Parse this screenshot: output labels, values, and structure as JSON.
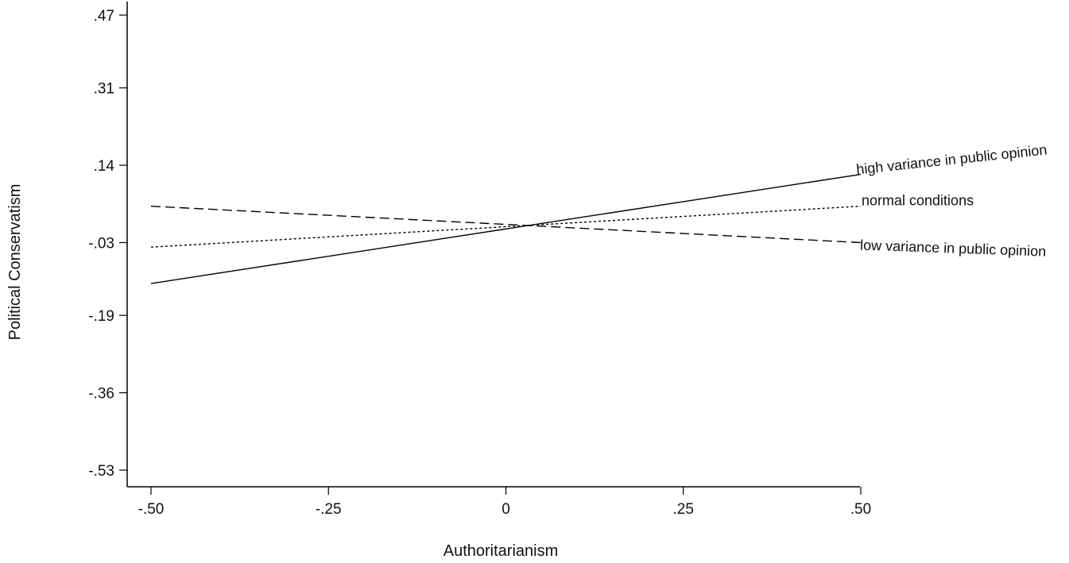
{
  "chart_data": {
    "type": "line",
    "xlabel": "Authoritarianism",
    "ylabel": "Political Conservatism",
    "xlim": [
      -0.5,
      0.5
    ],
    "ylim": [
      -0.53,
      0.47
    ],
    "x_ticks": [
      -0.5,
      -0.25,
      0,
      0.25,
      0.5
    ],
    "x_tick_labels": [
      "-.50",
      "-.25",
      "0",
      ".25",
      ".50"
    ],
    "y_ticks": [
      0.47,
      0.31,
      0.14,
      -0.03,
      -0.19,
      -0.36,
      -0.53
    ],
    "y_tick_labels": [
      ".47",
      ".31",
      ".14",
      "-.03",
      "-.19",
      "-.36",
      "-.53"
    ],
    "grid": false,
    "legend": "inline labels at right end of lines",
    "series": [
      {
        "name": "high variance in public opinion",
        "style": "solid",
        "x": [
          -0.5,
          0.5
        ],
        "y": [
          -0.12,
          0.12
        ]
      },
      {
        "name": "normal conditions",
        "style": "dotted",
        "x": [
          -0.5,
          0.5
        ],
        "y": [
          -0.04,
          0.05
        ]
      },
      {
        "name": "low variance in public opinion",
        "style": "dashed",
        "x": [
          -0.5,
          0.5
        ],
        "y": [
          0.05,
          -0.03
        ]
      }
    ],
    "colors": {
      "axis": "#000000",
      "line": "#000000",
      "text": "#111111"
    }
  }
}
